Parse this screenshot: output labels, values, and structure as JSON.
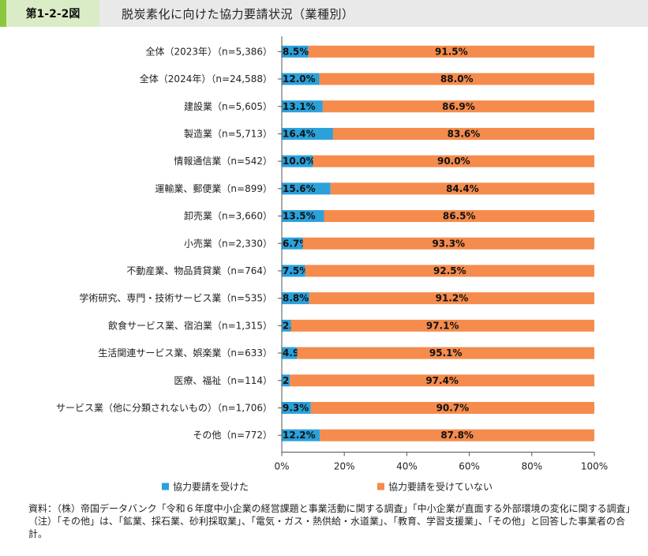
{
  "header": {
    "figure_number": "第1-2-2図",
    "title": "脱炭素化に向けた協力要請状況（業種別）"
  },
  "colors": {
    "received": "#2aa1db",
    "not_received": "#f58b4c",
    "accent": "#8cc63f"
  },
  "chart_data": {
    "type": "bar",
    "orientation": "horizontal",
    "stacked": true,
    "percent": true,
    "categories": [
      "全体（2023年）（n=5,386）",
      "全体（2024年）（n=24,588）",
      "建設業（n=5,605）",
      "製造業（n=5,713）",
      "情報通信業（n=542）",
      "運輸業、郵便業（n=899）",
      "卸売業（n=3,660）",
      "小売業（n=2,330）",
      "不動産業、物品賃貸業（n=764）",
      "学術研究、専門・技術サービス業（n=535）",
      "飲食サービス業、宿泊業（n=1,315）",
      "生活関連サービス業、娯楽業（n=633）",
      "医療、福祉（n=114）",
      "サービス業（他に分類されないもの）（n=1,706）",
      "その他（n=772）"
    ],
    "series": [
      {
        "name": "協力要請を受けた",
        "values": [
          8.5,
          12.0,
          13.1,
          16.4,
          10.0,
          15.6,
          13.5,
          6.7,
          7.5,
          8.8,
          2.9,
          4.9,
          2.6,
          9.3,
          12.2
        ],
        "labels": [
          "8.5%",
          "12.0%",
          "13.1%",
          "16.4%",
          "10.0%",
          "15.6%",
          "13.5%",
          "6.7%",
          "7.5%",
          "8.8%",
          "2.9%",
          "4.9%",
          "2.6%",
          "9.3%",
          "12.2%"
        ]
      },
      {
        "name": "協力要請を受けていない",
        "values": [
          91.5,
          88.0,
          86.9,
          83.6,
          90.0,
          84.4,
          86.5,
          93.3,
          92.5,
          91.2,
          97.1,
          95.1,
          97.4,
          90.7,
          87.8
        ],
        "labels": [
          "91.5%",
          "88.0%",
          "86.9%",
          "83.6%",
          "90.0%",
          "84.4%",
          "86.5%",
          "93.3%",
          "92.5%",
          "91.2%",
          "97.1%",
          "95.1%",
          "97.4%",
          "90.7%",
          "87.8%"
        ]
      }
    ],
    "xlim": [
      0,
      100
    ],
    "xticks": [
      "0%",
      "20%",
      "40%",
      "60%",
      "80%",
      "100%"
    ],
    "legend_position": "bottom"
  },
  "notes": {
    "source": "資料：（株）帝国データバンク「令和６年度中小企業の経営課題と事業活動に関する調査」「中小企業が直面する外部環境の変化に関する調査」",
    "note": "（注）「その他」は、「鉱業、採石業、砂利採取業」、「電気・ガス・熱供給・水道業」、「教育、学習支援業」、「その他」と回答した事業者の合計。"
  }
}
